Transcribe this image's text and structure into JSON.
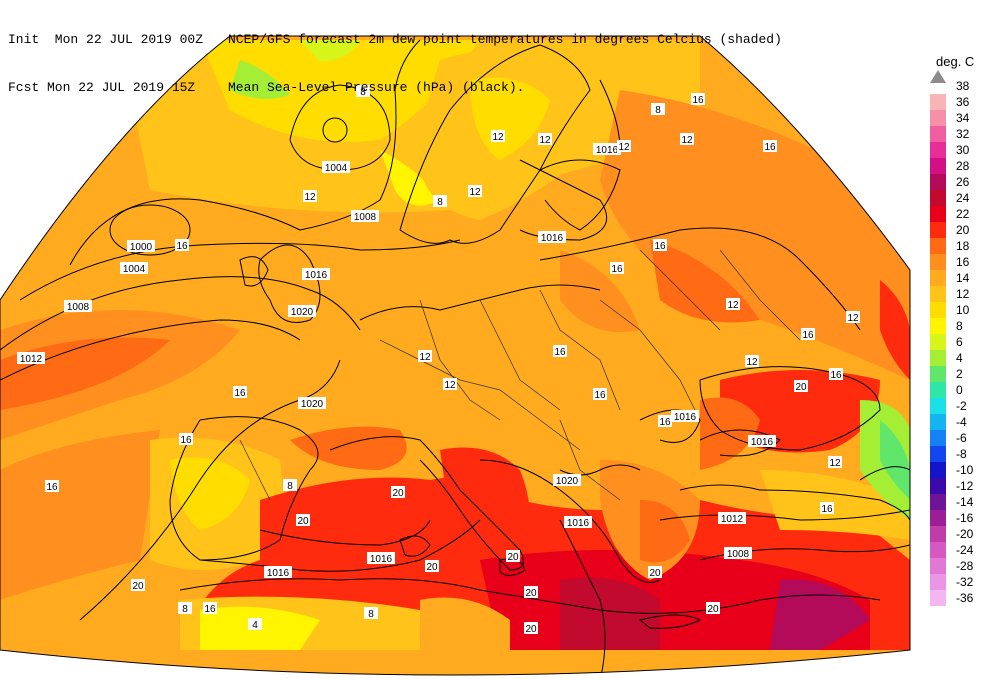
{
  "header": {
    "init_label": "Init  Mon 22 JUL 2019 00Z",
    "fcst_label": "Fcst Mon 22 JUL 2019 15Z",
    "line1": "NCEP/GFS forecast 2m dew point temperatures in degrees Celcius (shaded)",
    "line2": "Mean Sea-Level Pressure (hPa) (black)."
  },
  "legend": {
    "unit": "deg. C",
    "entries": [
      {
        "label": "38",
        "color": ""
      },
      {
        "label": "36",
        "color": "#f7b5b5"
      },
      {
        "label": "34",
        "color": "#f590a8"
      },
      {
        "label": "32",
        "color": "#ef5fa0"
      },
      {
        "label": "30",
        "color": "#e62d98"
      },
      {
        "label": "28",
        "color": "#d30f85"
      },
      {
        "label": "26",
        "color": "#b40a5a"
      },
      {
        "label": "24",
        "color": "#c20a2e"
      },
      {
        "label": "22",
        "color": "#e8001a"
      },
      {
        "label": "20",
        "color": "#ff2b0f"
      },
      {
        "label": "18",
        "color": "#ff6a14"
      },
      {
        "label": "16",
        "color": "#ff8f1f"
      },
      {
        "label": "14",
        "color": "#ffaa1f"
      },
      {
        "label": "12",
        "color": "#ffc31a"
      },
      {
        "label": "10",
        "color": "#ffdd00"
      },
      {
        "label": "8",
        "color": "#fff500"
      },
      {
        "label": "6",
        "color": "#d6f51a"
      },
      {
        "label": "4",
        "color": "#a4ee36"
      },
      {
        "label": "2",
        "color": "#5fe66b"
      },
      {
        "label": "0",
        "color": "#2ee6a6"
      },
      {
        "label": "-2",
        "color": "#19e0e6"
      },
      {
        "label": "-4",
        "color": "#14b4f0"
      },
      {
        "label": "-6",
        "color": "#1482f5"
      },
      {
        "label": "-8",
        "color": "#1446f0"
      },
      {
        "label": "-10",
        "color": "#1414c8"
      },
      {
        "label": "-12",
        "color": "#3c0aaa"
      },
      {
        "label": "-14",
        "color": "#6e1496"
      },
      {
        "label": "-16",
        "color": "#9a1e96"
      },
      {
        "label": "-20",
        "color": "#c03ca8"
      },
      {
        "label": "-24",
        "color": "#d45ac2"
      },
      {
        "label": "-28",
        "color": "#e078d4"
      },
      {
        "label": "-32",
        "color": "#ea96e4"
      },
      {
        "label": "-36",
        "color": "#f2b6f0"
      }
    ]
  },
  "map": {
    "isobar_labels": [
      "1004",
      "1008",
      "1000",
      "1004",
      "1008",
      "1012",
      "1016",
      "1020",
      "1020",
      "1016",
      "1016",
      "1016",
      "1016",
      "1020",
      "1016",
      "1012",
      "1008",
      "1016",
      "1016",
      "1020",
      "1016"
    ],
    "dewpoint_labels": [
      "8",
      "12",
      "16",
      "12",
      "12",
      "12",
      "8",
      "12",
      "8",
      "16",
      "12",
      "16",
      "16",
      "16",
      "12",
      "12",
      "12",
      "16",
      "16",
      "16",
      "12",
      "20",
      "16",
      "12",
      "16",
      "16",
      "20",
      "20",
      "20",
      "20",
      "20",
      "20",
      "8",
      "16",
      "20",
      "20",
      "20",
      "16",
      "16",
      "12",
      "8",
      "8",
      "4",
      "16"
    ]
  }
}
